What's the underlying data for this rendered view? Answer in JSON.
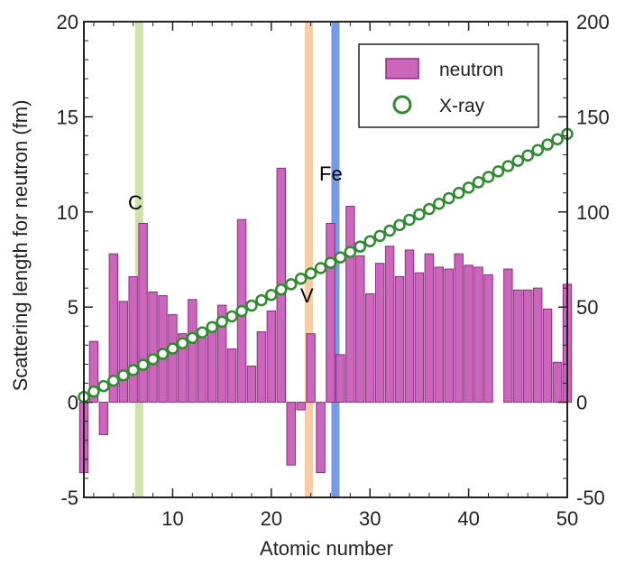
{
  "chart_data": {
    "type": "bar",
    "xlabel": "Atomic number",
    "ylabel": "Scattering length for neutron (fm)",
    "xlim": [
      1,
      50
    ],
    "ylim": [
      -5,
      20
    ],
    "y2lim": [
      -50,
      200
    ],
    "x_ticks": [
      "10",
      "20",
      "30",
      "40",
      "50"
    ],
    "y_ticks": [
      "-5",
      "0",
      "5",
      "10",
      "15",
      "20"
    ],
    "y2_ticks": [
      "-50",
      "0",
      "50",
      "100",
      "150",
      "200"
    ],
    "legend": {
      "position": "top-right",
      "items": [
        "neutron",
        "X-ray"
      ]
    },
    "colors": {
      "bar_fill": "#cc66bb",
      "bar_stroke": "#8b2a86",
      "xray_stroke": "#2e8b2e",
      "band_C": "#c8dca0",
      "band_V": "#f6c496",
      "band_Fe": "#5c8ae6"
    },
    "highlight_bands": [
      {
        "label": "C",
        "x": 6.6
      },
      {
        "label": "V",
        "x": 23.8
      },
      {
        "label": "Fe",
        "x": 26.5
      }
    ],
    "annotations": [
      "C",
      "V",
      "Fe"
    ],
    "series": [
      {
        "name": "neutron",
        "kind": "bar",
        "x": [
          1,
          2,
          3,
          4,
          5,
          6,
          7,
          8,
          9,
          10,
          11,
          12,
          13,
          14,
          15,
          16,
          17,
          18,
          19,
          20,
          21,
          22,
          23,
          24,
          25,
          26,
          27,
          28,
          29,
          30,
          31,
          32,
          33,
          34,
          35,
          36,
          37,
          38,
          39,
          40,
          41,
          42,
          43,
          44,
          45,
          46,
          47,
          48,
          49,
          50
        ],
        "values": [
          -3.7,
          3.2,
          -1.7,
          7.8,
          5.3,
          6.6,
          9.4,
          5.8,
          5.6,
          4.6,
          3.6,
          5.4,
          3.4,
          4.1,
          5.1,
          2.8,
          9.6,
          1.9,
          3.7,
          4.8,
          12.3,
          -3.3,
          -0.4,
          3.6,
          -3.7,
          9.4,
          2.5,
          10.3,
          7.7,
          5.7,
          7.3,
          8.2,
          6.6,
          8.0,
          6.8,
          7.8,
          7.1,
          7.0,
          7.8,
          7.2,
          7.1,
          6.7,
          null,
          7.0,
          5.9,
          5.9,
          6.0,
          4.9,
          2.1,
          6.2
        ]
      },
      {
        "name": "X-ray",
        "kind": "scatter",
        "axis": "right",
        "x": [
          1,
          2,
          3,
          4,
          5,
          6,
          7,
          8,
          9,
          10,
          11,
          12,
          13,
          14,
          15,
          16,
          17,
          18,
          19,
          20,
          21,
          22,
          23,
          24,
          25,
          26,
          27,
          28,
          29,
          30,
          31,
          32,
          33,
          34,
          35,
          36,
          37,
          38,
          39,
          40,
          41,
          42,
          43,
          44,
          45,
          46,
          47,
          48,
          49,
          50
        ],
        "values": [
          2.8,
          5.6,
          8.5,
          11.3,
          14.1,
          16.9,
          19.7,
          22.6,
          25.4,
          28.2,
          31.0,
          33.8,
          36.7,
          39.5,
          42.3,
          45.1,
          47.9,
          50.8,
          53.6,
          56.4,
          59.2,
          62.0,
          64.9,
          67.7,
          70.5,
          73.3,
          76.1,
          79.0,
          81.8,
          84.6,
          87.4,
          90.2,
          93.1,
          95.9,
          98.7,
          101.5,
          104.3,
          107.2,
          110.0,
          112.8,
          115.6,
          118.4,
          121.3,
          124.1,
          126.9,
          129.7,
          132.5,
          135.4,
          138.2,
          141.0
        ]
      }
    ]
  }
}
